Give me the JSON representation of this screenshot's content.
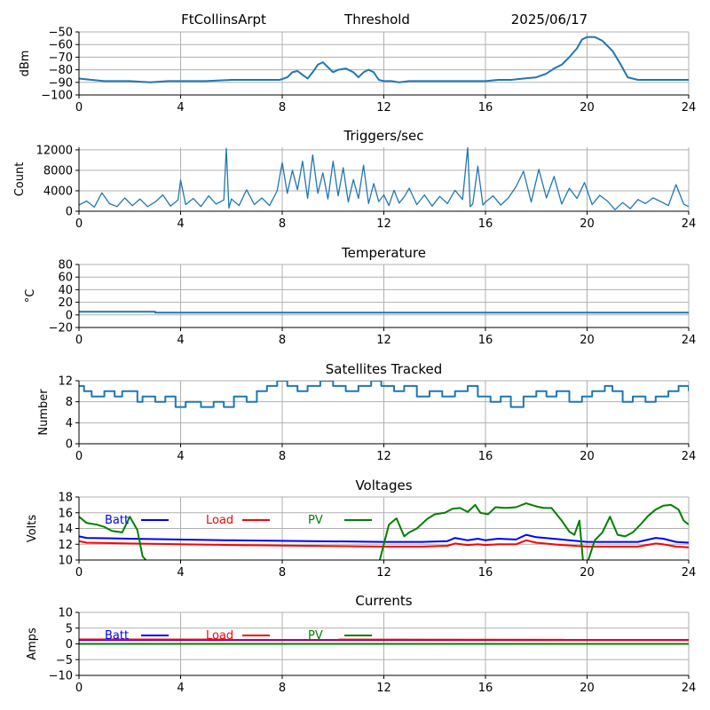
{
  "header": {
    "station": "FtCollinsArpt",
    "mode": "Threshold",
    "date": "2025/06/17"
  },
  "chart_data": [
    {
      "id": "threshold",
      "type": "line",
      "title": "",
      "xlabel": "",
      "ylabel": "dBm",
      "xlim": [
        0,
        24
      ],
      "ylim": [
        -100,
        -50
      ],
      "xticks": [
        "0",
        "4",
        "8",
        "12",
        "16",
        "20",
        "24"
      ],
      "yticks": [
        "−100",
        "−90",
        "−80",
        "−70",
        "−60",
        "−50"
      ],
      "grid": true,
      "series": [
        {
          "color": "#1f77b4",
          "x": [
            0,
            0.5,
            1,
            2,
            2.8,
            3.5,
            5,
            6,
            7,
            7.9,
            8.2,
            8.4,
            8.6,
            8.8,
            9.0,
            9.2,
            9.4,
            9.6,
            9.8,
            10.0,
            10.2,
            10.5,
            10.8,
            11.0,
            11.2,
            11.4,
            11.6,
            11.8,
            12.0,
            12.3,
            12.6,
            13,
            14,
            15,
            16,
            16.5,
            17,
            17.5,
            18.0,
            18.4,
            18.7,
            19.0,
            19.3,
            19.6,
            19.8,
            20.0,
            20.3,
            20.6,
            21.0,
            21.3,
            21.6,
            22,
            23,
            24
          ],
          "y": [
            -87,
            -88,
            -89,
            -89,
            -90,
            -89,
            -89,
            -88,
            -88,
            -88,
            -86,
            -82,
            -81,
            -84,
            -87,
            -82,
            -76,
            -74,
            -78,
            -82,
            -80,
            -79,
            -82,
            -86,
            -82,
            -80,
            -82,
            -88,
            -89,
            -89,
            -90,
            -89,
            -89,
            -89,
            -89,
            -88,
            -88,
            -87,
            -86,
            -83,
            -79,
            -76,
            -70,
            -63,
            -56,
            -54,
            -54,
            -57,
            -65,
            -75,
            -86,
            -88,
            -88,
            -88
          ]
        }
      ]
    },
    {
      "id": "triggers",
      "type": "line",
      "title": "Triggers/sec",
      "xlabel": "",
      "ylabel": "Count",
      "xlim": [
        0,
        24
      ],
      "ylim": [
        0,
        12500
      ],
      "xticks": [
        "0",
        "4",
        "8",
        "12",
        "16",
        "20",
        "24"
      ],
      "yticks": [
        "0",
        "4000",
        "8000",
        "12000"
      ],
      "ytick_values": [
        0,
        4000,
        8000,
        12000
      ],
      "grid": true,
      "series": [
        {
          "color": "#1f77b4",
          "x": [
            0,
            0.3,
            0.6,
            0.9,
            1.2,
            1.5,
            1.8,
            2.1,
            2.4,
            2.7,
            3.0,
            3.3,
            3.6,
            3.9,
            4.0,
            4.2,
            4.5,
            4.8,
            5.1,
            5.4,
            5.7,
            5.8,
            5.9,
            6.0,
            6.3,
            6.6,
            6.9,
            7.2,
            7.5,
            7.8,
            8.0,
            8.2,
            8.4,
            8.6,
            8.8,
            9.0,
            9.2,
            9.4,
            9.6,
            9.8,
            10.0,
            10.2,
            10.4,
            10.6,
            10.8,
            11.0,
            11.2,
            11.4,
            11.6,
            11.8,
            12.0,
            12.2,
            12.4,
            12.6,
            12.8,
            13.0,
            13.3,
            13.6,
            13.9,
            14.2,
            14.5,
            14.8,
            15.1,
            15.3,
            15.4,
            15.5,
            15.7,
            15.9,
            16.0,
            16.3,
            16.6,
            16.9,
            17.2,
            17.5,
            17.8,
            18.1,
            18.4,
            18.7,
            19.0,
            19.3,
            19.6,
            19.9,
            20.2,
            20.5,
            20.8,
            21.1,
            21.4,
            21.7,
            22.0,
            22.3,
            22.6,
            22.9,
            23.2,
            23.5,
            23.8,
            24.0
          ],
          "y": [
            1200,
            2000,
            800,
            3600,
            1500,
            900,
            2600,
            1100,
            2400,
            900,
            1800,
            3200,
            1000,
            2200,
            6100,
            1300,
            2500,
            900,
            3000,
            1400,
            2200,
            12300,
            600,
            2400,
            1100,
            4200,
            1300,
            2600,
            1100,
            4000,
            9500,
            3500,
            8000,
            4200,
            9800,
            2500,
            11000,
            3500,
            7500,
            2400,
            9800,
            3000,
            8500,
            1800,
            6200,
            2500,
            9000,
            1500,
            5400,
            1900,
            3200,
            1100,
            4100,
            1600,
            2800,
            4500,
            1300,
            3200,
            1000,
            2900,
            1500,
            4100,
            2300,
            12500,
            900,
            1400,
            8800,
            1200,
            1800,
            3000,
            1200,
            2600,
            4800,
            7800,
            1800,
            8200,
            2600,
            6800,
            1400,
            4500,
            2500,
            5600,
            1300,
            3100,
            2000,
            300,
            1700,
            500,
            2300,
            1500,
            2600,
            1900,
            1100,
            5200,
            1400,
            900
          ]
        }
      ]
    },
    {
      "id": "temperature",
      "type": "line",
      "title": "Temperature",
      "xlabel": "",
      "ylabel": "°C",
      "xlim": [
        0,
        24
      ],
      "ylim": [
        -20,
        80
      ],
      "xticks": [
        "0",
        "4",
        "8",
        "12",
        "16",
        "20",
        "24"
      ],
      "yticks": [
        "−20",
        "0",
        "20",
        "40",
        "60",
        "80"
      ],
      "grid": true,
      "series": [
        {
          "color": "#1f77b4",
          "x": [
            0,
            3.0,
            3.0,
            24
          ],
          "y": [
            5,
            5,
            3.5,
            3.5
          ]
        }
      ]
    },
    {
      "id": "satellites",
      "type": "line",
      "title": "Satellites Tracked",
      "xlabel": "",
      "ylabel": "Number",
      "xlim": [
        0,
        24
      ],
      "ylim": [
        0,
        12
      ],
      "xticks": [
        "0",
        "4",
        "8",
        "12",
        "16",
        "20",
        "24"
      ],
      "yticks": [
        "0",
        "4",
        "8",
        "12"
      ],
      "grid": true,
      "series": [
        {
          "color": "#1f77b4",
          "step": true,
          "x": [
            0,
            0.2,
            0.5,
            1.0,
            1.4,
            1.7,
            2.3,
            2.5,
            3.0,
            3.4,
            3.8,
            4.2,
            4.8,
            5.3,
            5.7,
            6.1,
            6.6,
            7.0,
            7.4,
            7.8,
            8.2,
            8.6,
            9.0,
            9.5,
            10.0,
            10.5,
            11.0,
            11.5,
            11.9,
            12.4,
            12.8,
            13.3,
            13.8,
            14.3,
            14.8,
            15.3,
            15.7,
            16.2,
            16.6,
            17.0,
            17.5,
            18.0,
            18.4,
            18.8,
            19.3,
            19.8,
            20.2,
            20.7,
            21.0,
            21.4,
            21.8,
            22.3,
            22.7,
            23.2,
            23.6,
            24.0
          ],
          "y": [
            11,
            10,
            9,
            10,
            9,
            10,
            8,
            9,
            8,
            9,
            7,
            8,
            7,
            8,
            7,
            9,
            8,
            10,
            11,
            12,
            11,
            10,
            11,
            12,
            11,
            10,
            11,
            12,
            11,
            10,
            11,
            9,
            10,
            9,
            10,
            11,
            9,
            8,
            9,
            7,
            9,
            10,
            9,
            10,
            8,
            9,
            10,
            11,
            10,
            8,
            9,
            8,
            9,
            10,
            11,
            10
          ]
        }
      ]
    },
    {
      "id": "voltages",
      "type": "line",
      "title": "Voltages",
      "xlabel": "",
      "ylabel": "Volts",
      "xlim": [
        0,
        24
      ],
      "ylim": [
        10,
        18
      ],
      "xticks": [
        "0",
        "4",
        "8",
        "12",
        "16",
        "20",
        "24"
      ],
      "yticks": [
        "10",
        "12",
        "14",
        "16",
        "18"
      ],
      "grid": true,
      "series": [
        {
          "name": "Batt",
          "color": "#0000ff",
          "x": [
            0,
            0.3,
            2,
            6,
            12,
            13.5,
            14.5,
            14.8,
            15.3,
            15.7,
            16.0,
            16.5,
            17.2,
            17.6,
            18.0,
            19.0,
            20.0,
            22.0,
            22.7,
            23.0,
            23.5,
            24.0
          ],
          "y": [
            13.0,
            12.8,
            12.7,
            12.5,
            12.3,
            12.3,
            12.4,
            12.8,
            12.5,
            12.7,
            12.5,
            12.7,
            12.6,
            13.2,
            12.9,
            12.6,
            12.3,
            12.3,
            12.8,
            12.7,
            12.3,
            12.2
          ]
        },
        {
          "name": "Load",
          "color": "#ff0000",
          "x": [
            0,
            0.3,
            2,
            6,
            12,
            13.5,
            14.5,
            14.8,
            15.3,
            15.7,
            16.0,
            16.5,
            17.2,
            17.6,
            18.0,
            19.0,
            20.0,
            22.0,
            22.7,
            23.0,
            23.5,
            24.0
          ],
          "y": [
            12.4,
            12.2,
            12.1,
            11.9,
            11.7,
            11.7,
            11.8,
            12.1,
            11.9,
            12.0,
            11.9,
            12.0,
            12.0,
            12.5,
            12.2,
            11.9,
            11.7,
            11.7,
            12.1,
            12.0,
            11.7,
            11.6
          ]
        },
        {
          "name": "PV",
          "color": "#008000",
          "x": [
            0,
            0.3,
            0.7,
            1.0,
            1.3,
            1.7,
            2.0,
            2.3,
            2.5,
            2.75,
            11.8,
            12.2,
            12.5,
            12.8,
            13.0,
            13.3,
            13.7,
            14.0,
            14.4,
            14.7,
            15.0,
            15.3,
            15.6,
            15.8,
            16.1,
            16.4,
            16.8,
            17.2,
            17.6,
            18.0,
            18.3,
            18.6,
            19.0,
            19.3,
            19.5,
            19.7,
            19.85,
            20.0,
            20.3,
            20.6,
            20.9,
            21.2,
            21.5,
            21.8,
            22.1,
            22.4,
            22.7,
            23.0,
            23.3,
            23.6,
            23.8,
            24.0
          ],
          "y": [
            15.5,
            14.7,
            14.5,
            14.2,
            13.7,
            13.5,
            15.5,
            13.8,
            10.5,
            9.5,
            9.5,
            14.5,
            15.3,
            13.0,
            13.5,
            14.0,
            15.2,
            15.8,
            16.0,
            16.5,
            16.6,
            16.1,
            17.0,
            16.0,
            15.8,
            16.7,
            16.6,
            16.7,
            17.2,
            16.8,
            16.6,
            16.6,
            15.0,
            13.6,
            13.2,
            15.0,
            9.5,
            9.5,
            12.5,
            13.5,
            15.5,
            13.2,
            13.0,
            13.5,
            14.5,
            15.6,
            16.4,
            16.9,
            17.0,
            16.4,
            15.0,
            14.5
          ]
        }
      ],
      "legend": [
        {
          "label": "Batt",
          "color": "#0000ff"
        },
        {
          "label": "Load",
          "color": "#ff0000"
        },
        {
          "label": "PV",
          "color": "#008000"
        }
      ]
    },
    {
      "id": "currents",
      "type": "line",
      "title": "Currents",
      "xlabel": "",
      "ylabel": "Amps",
      "xlim": [
        0,
        24
      ],
      "ylim": [
        -10,
        10
      ],
      "xticks": [
        "0",
        "4",
        "8",
        "12",
        "16",
        "20",
        "24"
      ],
      "yticks": [
        "−10",
        "−5",
        "0",
        "5",
        "10"
      ],
      "grid": true,
      "series": [
        {
          "name": "Batt",
          "color": "#0000ff",
          "x": [
            0,
            24
          ],
          "y": [
            1.2,
            1.2
          ]
        },
        {
          "name": "Load",
          "color": "#ff0000",
          "x": [
            0,
            24
          ],
          "y": [
            1.4,
            1.3
          ]
        },
        {
          "name": "PV",
          "color": "#008000",
          "x": [
            0,
            24
          ],
          "y": [
            0.0,
            0.0
          ]
        }
      ],
      "legend": [
        {
          "label": "Batt",
          "color": "#0000ff"
        },
        {
          "label": "Load",
          "color": "#ff0000"
        },
        {
          "label": "PV",
          "color": "#008000"
        }
      ]
    }
  ]
}
